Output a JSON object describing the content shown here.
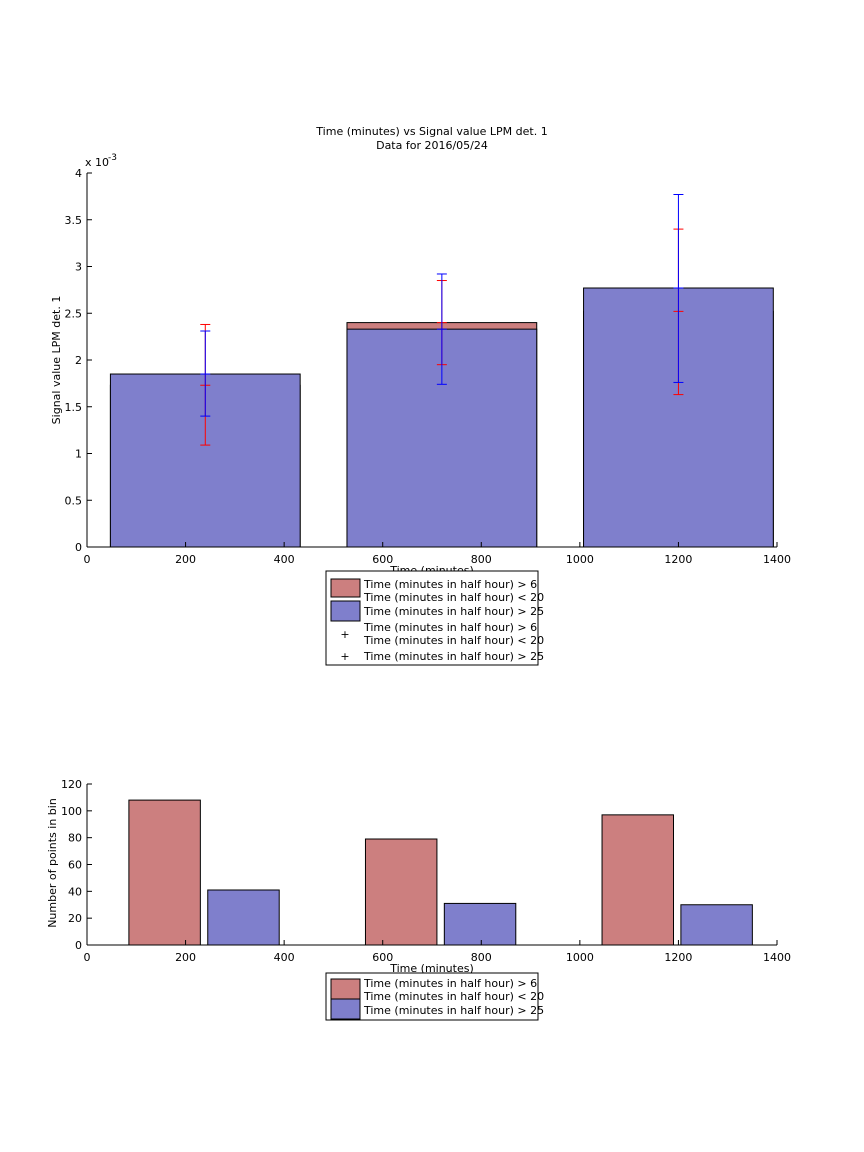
{
  "colors": {
    "red_bar": "#cc7f7f",
    "blue_bar": "#7f7fcc",
    "red_err": "#ff0000",
    "blue_err": "#0000ff",
    "edge": "#000000"
  },
  "top_chart": {
    "title_line1": "Time (minutes) vs Signal value LPM det. 1",
    "title_line2": "Data for 2016/05/24",
    "ylabel": "Signal value LPM det. 1",
    "xlabel": "Time (minutes)",
    "y_exponent_base": "x 10",
    "y_exponent_power": "-3",
    "legend": {
      "red_bar_line1": "Time (minutes in half hour) > 6",
      "red_bar_line2": "Time (minutes in half hour) < 20",
      "blue_bar": "Time (minutes in half hour) > 25",
      "red_err_line1": "Time (minutes in half hour) > 6",
      "red_err_line2": "Time (minutes in half hour) < 20",
      "blue_err": "Time (minutes in half hour) > 25"
    }
  },
  "bottom_chart": {
    "ylabel": "Number of points in bin",
    "xlabel": "Time (minutes)",
    "legend": {
      "red_bar_line1": "Time (minutes in half hour) > 6",
      "red_bar_line2": "Time (minutes in half hour) < 20",
      "blue_bar": "Time (minutes in half hour) > 25"
    }
  },
  "chart_data": [
    {
      "type": "bar",
      "title": "Time (minutes) vs Signal value LPM det. 1 / Data for 2016/05/24",
      "xlabel": "Time (minutes)",
      "ylabel": "Signal value LPM det. 1",
      "xlim": [
        0,
        1400
      ],
      "ylim": [
        0,
        0.004
      ],
      "x_ticks": [
        0,
        200,
        400,
        600,
        800,
        1000,
        1200,
        1400
      ],
      "x_tick_labels": [
        "0",
        "200",
        "400",
        "600",
        "800",
        "1000",
        "1200",
        "1400"
      ],
      "y_ticks": [
        0,
        0.5,
        1,
        1.5,
        2,
        2.5,
        3,
        3.5,
        4
      ],
      "y_tick_labels": [
        "0",
        "0.5",
        "1",
        "1.5",
        "2",
        "2.5",
        "3",
        "3.5",
        "4"
      ],
      "y_scale_note": "x 10^-3",
      "bar_centers": [
        240,
        720,
        1200
      ],
      "bar_width": 385,
      "series": [
        {
          "name": "Time (minutes in half hour) > 6 Time (minutes in half hour) < 20",
          "color": "#cc7f7f",
          "values": [
            1.73,
            2.4,
            2.52
          ],
          "error_low": [
            1.09,
            1.95,
            1.63
          ],
          "error_high": [
            2.38,
            2.85,
            3.4
          ],
          "error_color": "#ff0000"
        },
        {
          "name": "Time (minutes in half hour) > 25",
          "color": "#7f7fcc",
          "values": [
            1.85,
            2.33,
            2.77
          ],
          "error_low": [
            1.4,
            1.74,
            1.76
          ],
          "error_high": [
            2.31,
            2.92,
            3.77
          ],
          "error_color": "#0000ff"
        }
      ],
      "legend_position": "bottom-center"
    },
    {
      "type": "bar",
      "xlabel": "Time (minutes)",
      "ylabel": "Number of points in bin",
      "xlim": [
        0,
        1400
      ],
      "ylim": [
        0,
        120
      ],
      "x_ticks": [
        0,
        200,
        400,
        600,
        800,
        1000,
        1200,
        1400
      ],
      "x_tick_labels": [
        "0",
        "200",
        "400",
        "600",
        "800",
        "1000",
        "1200",
        "1400"
      ],
      "y_ticks": [
        0,
        20,
        40,
        60,
        80,
        100,
        120
      ],
      "y_tick_labels": [
        "0",
        "20",
        "40",
        "60",
        "80",
        "100",
        "120"
      ],
      "series": [
        {
          "name": "Time (minutes in half hour) > 6 Time (minutes in half hour) < 20",
          "color": "#cc7f7f",
          "x_left": [
            85,
            565,
            1045
          ],
          "x_right": [
            230,
            710,
            1190
          ],
          "values": [
            108,
            79,
            97
          ]
        },
        {
          "name": "Time (minutes in half hour) > 25",
          "color": "#7f7fcc",
          "x_left": [
            245,
            725,
            1205
          ],
          "x_right": [
            390,
            870,
            1350
          ],
          "values": [
            41,
            31,
            30
          ]
        }
      ],
      "legend_position": "bottom-center"
    }
  ]
}
